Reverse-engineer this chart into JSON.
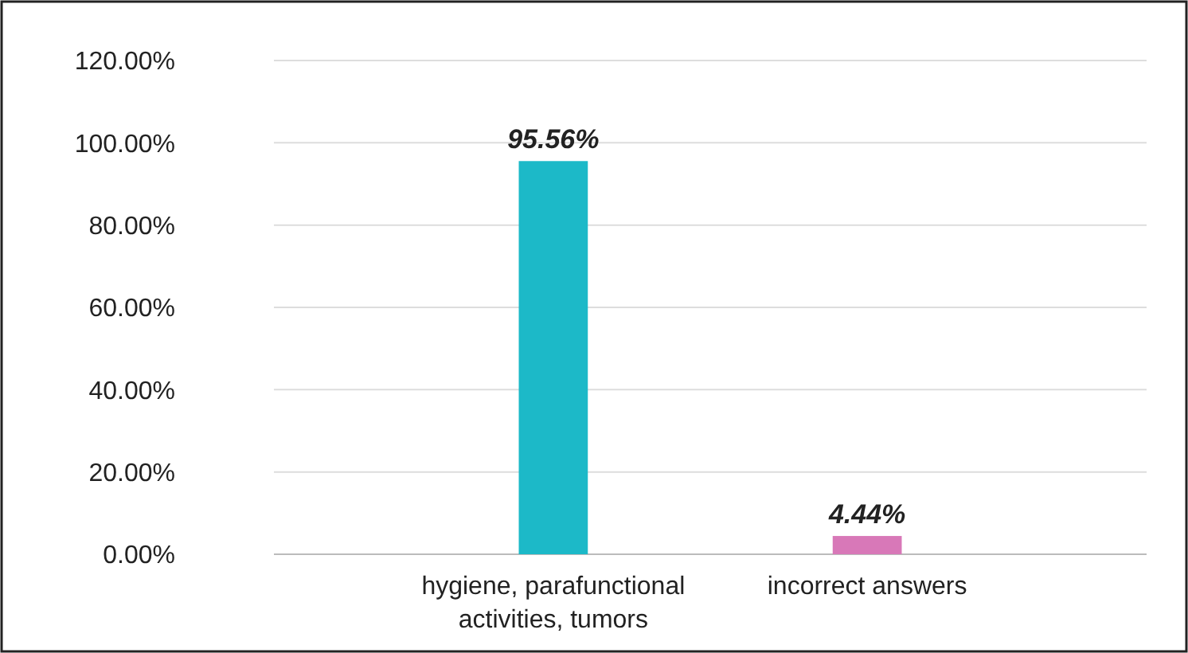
{
  "chart_data": {
    "type": "bar",
    "categories": [
      "hygiene, parafunctional activities, tumors",
      "incorrect answers"
    ],
    "values": [
      95.56,
      4.44
    ],
    "colors": [
      "#1cb9c8",
      "#d878b8"
    ],
    "value_labels": [
      "95.56%",
      "4.44%"
    ],
    "ylim": [
      0,
      120
    ],
    "yticks": [
      {
        "value": 0,
        "label": "0.00%"
      },
      {
        "value": 20,
        "label": "20.00%"
      },
      {
        "value": 40,
        "label": "40.00%"
      },
      {
        "value": 60,
        "label": "60.00%"
      },
      {
        "value": 80,
        "label": "80.00%"
      },
      {
        "value": 100,
        "label": "100.00%"
      },
      {
        "value": 120,
        "label": "120.00%"
      }
    ],
    "grid": "y"
  }
}
